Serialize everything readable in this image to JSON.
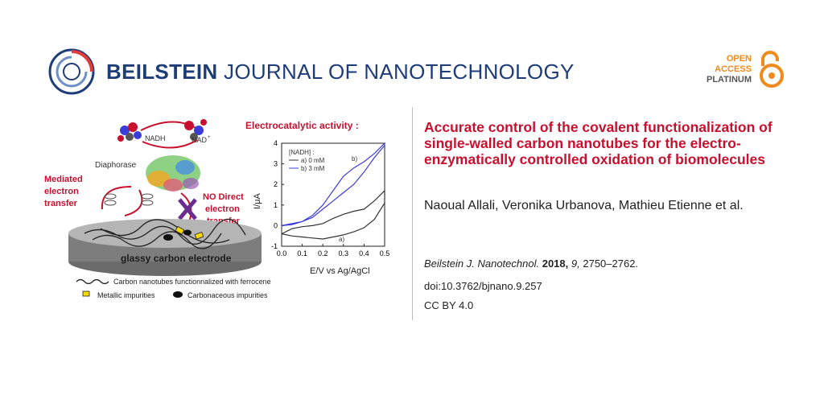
{
  "header": {
    "journal_name_bold": "BEILSTEIN",
    "journal_name_rest": "JOURNAL OF NANOTECHNOLOGY",
    "open_line1": "OPEN",
    "open_line2": "ACCESS",
    "open_line3": "PLATINUM"
  },
  "article": {
    "title": "Accurate control of the covalent functionalization of single-walled carbon nanotubes for the electro-enzymatically controlled oxidation of biomolecules",
    "authors": "Naoual Allali, Veronika Urbanova, Mathieu Etienne et al.",
    "citation_journal": "Beilstein J. Nanotechnol.",
    "citation_year": "2018,",
    "citation_volume": "9,",
    "citation_pages": "2750–2762.",
    "doi": "doi:10.3762/bjnano.9.257",
    "license": "CC BY 4.0"
  },
  "figure": {
    "label_nadh": "NADH",
    "label_nad": "NAD",
    "label_nad_sup": "+",
    "label_diaphorase": "Diaphorase",
    "mediated_1": "Mediated",
    "mediated_2": "electron",
    "mediated_3": "transfer",
    "nodirect_1": "NO Direct",
    "nodirect_2": "electron",
    "nodirect_3": "transfer",
    "electrode": "glassy carbon electrode",
    "heading": "Electrocatalytic activity :",
    "legend_cnt": "Carbon nanotubes functionnalized with ferrocene",
    "legend_metal": "Metallic impurities",
    "legend_carbon": "Carbonaceous impurities"
  },
  "chart_data": {
    "type": "line",
    "xlabel": "E/V vs Ag/AgCl",
    "ylabel": "I/μA",
    "xlim": [
      0.0,
      0.5
    ],
    "ylim": [
      -1,
      4
    ],
    "x_ticks": [
      "0.0",
      "0.1",
      "0.2",
      "0.3",
      "0.4",
      "0.5"
    ],
    "y_ticks": [
      "-1",
      "0",
      "1",
      "2",
      "3",
      "4"
    ],
    "legend_title": "[NADH] :",
    "annotations": [
      "a)",
      "b)"
    ],
    "series": [
      {
        "name": "a) 0 mM",
        "color": "#333333",
        "x": [
          0.0,
          0.05,
          0.1,
          0.15,
          0.2,
          0.25,
          0.3,
          0.35,
          0.4,
          0.45,
          0.5,
          0.5,
          0.45,
          0.4,
          0.35,
          0.3,
          0.25,
          0.2,
          0.15,
          0.1,
          0.05,
          0.0
        ],
        "y": [
          -0.4,
          -0.5,
          -0.55,
          -0.6,
          -0.65,
          -0.55,
          -0.45,
          -0.3,
          -0.1,
          0.3,
          1.1,
          1.7,
          1.2,
          0.8,
          0.7,
          0.55,
          0.35,
          0.1,
          0.0,
          -0.05,
          -0.15,
          -0.4
        ]
      },
      {
        "name": "b) 3 mM",
        "color": "#3b3bd9",
        "x": [
          0.0,
          0.05,
          0.1,
          0.15,
          0.2,
          0.25,
          0.3,
          0.35,
          0.4,
          0.45,
          0.5,
          0.5,
          0.45,
          0.4,
          0.35,
          0.3,
          0.25,
          0.2,
          0.15,
          0.1,
          0.05,
          0.0
        ],
        "y": [
          0.0,
          0.1,
          0.2,
          0.4,
          0.8,
          1.2,
          1.6,
          2.0,
          2.6,
          3.3,
          3.9,
          4.0,
          3.5,
          3.1,
          2.8,
          2.4,
          1.7,
          1.0,
          0.5,
          0.2,
          0.05,
          0.0
        ]
      }
    ]
  }
}
